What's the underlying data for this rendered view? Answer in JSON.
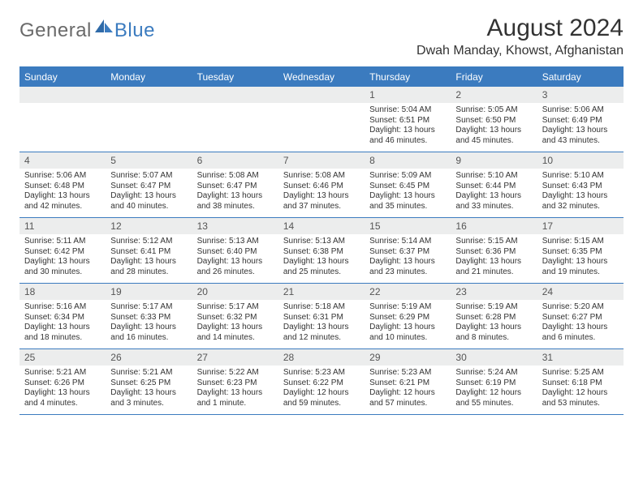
{
  "colors": {
    "brand_blue": "#3b7bbf",
    "logo_gray": "#6a6a6a",
    "band_gray": "#eceded",
    "text": "#333333",
    "background": "#ffffff"
  },
  "logo": {
    "text1": "General",
    "text2": "Blue"
  },
  "title": "August 2024",
  "location": "Dwah Manday, Khowst, Afghanistan",
  "weekdays": [
    "Sunday",
    "Monday",
    "Tuesday",
    "Wednesday",
    "Thursday",
    "Friday",
    "Saturday"
  ],
  "weeks": [
    [
      {
        "n": "",
        "sr": "",
        "ss": "",
        "d1": "",
        "d2": ""
      },
      {
        "n": "",
        "sr": "",
        "ss": "",
        "d1": "",
        "d2": ""
      },
      {
        "n": "",
        "sr": "",
        "ss": "",
        "d1": "",
        "d2": ""
      },
      {
        "n": "",
        "sr": "",
        "ss": "",
        "d1": "",
        "d2": ""
      },
      {
        "n": "1",
        "sr": "Sunrise: 5:04 AM",
        "ss": "Sunset: 6:51 PM",
        "d1": "Daylight: 13 hours",
        "d2": "and 46 minutes."
      },
      {
        "n": "2",
        "sr": "Sunrise: 5:05 AM",
        "ss": "Sunset: 6:50 PM",
        "d1": "Daylight: 13 hours",
        "d2": "and 45 minutes."
      },
      {
        "n": "3",
        "sr": "Sunrise: 5:06 AM",
        "ss": "Sunset: 6:49 PM",
        "d1": "Daylight: 13 hours",
        "d2": "and 43 minutes."
      }
    ],
    [
      {
        "n": "4",
        "sr": "Sunrise: 5:06 AM",
        "ss": "Sunset: 6:48 PM",
        "d1": "Daylight: 13 hours",
        "d2": "and 42 minutes."
      },
      {
        "n": "5",
        "sr": "Sunrise: 5:07 AM",
        "ss": "Sunset: 6:47 PM",
        "d1": "Daylight: 13 hours",
        "d2": "and 40 minutes."
      },
      {
        "n": "6",
        "sr": "Sunrise: 5:08 AM",
        "ss": "Sunset: 6:47 PM",
        "d1": "Daylight: 13 hours",
        "d2": "and 38 minutes."
      },
      {
        "n": "7",
        "sr": "Sunrise: 5:08 AM",
        "ss": "Sunset: 6:46 PM",
        "d1": "Daylight: 13 hours",
        "d2": "and 37 minutes."
      },
      {
        "n": "8",
        "sr": "Sunrise: 5:09 AM",
        "ss": "Sunset: 6:45 PM",
        "d1": "Daylight: 13 hours",
        "d2": "and 35 minutes."
      },
      {
        "n": "9",
        "sr": "Sunrise: 5:10 AM",
        "ss": "Sunset: 6:44 PM",
        "d1": "Daylight: 13 hours",
        "d2": "and 33 minutes."
      },
      {
        "n": "10",
        "sr": "Sunrise: 5:10 AM",
        "ss": "Sunset: 6:43 PM",
        "d1": "Daylight: 13 hours",
        "d2": "and 32 minutes."
      }
    ],
    [
      {
        "n": "11",
        "sr": "Sunrise: 5:11 AM",
        "ss": "Sunset: 6:42 PM",
        "d1": "Daylight: 13 hours",
        "d2": "and 30 minutes."
      },
      {
        "n": "12",
        "sr": "Sunrise: 5:12 AM",
        "ss": "Sunset: 6:41 PM",
        "d1": "Daylight: 13 hours",
        "d2": "and 28 minutes."
      },
      {
        "n": "13",
        "sr": "Sunrise: 5:13 AM",
        "ss": "Sunset: 6:40 PM",
        "d1": "Daylight: 13 hours",
        "d2": "and 26 minutes."
      },
      {
        "n": "14",
        "sr": "Sunrise: 5:13 AM",
        "ss": "Sunset: 6:38 PM",
        "d1": "Daylight: 13 hours",
        "d2": "and 25 minutes."
      },
      {
        "n": "15",
        "sr": "Sunrise: 5:14 AM",
        "ss": "Sunset: 6:37 PM",
        "d1": "Daylight: 13 hours",
        "d2": "and 23 minutes."
      },
      {
        "n": "16",
        "sr": "Sunrise: 5:15 AM",
        "ss": "Sunset: 6:36 PM",
        "d1": "Daylight: 13 hours",
        "d2": "and 21 minutes."
      },
      {
        "n": "17",
        "sr": "Sunrise: 5:15 AM",
        "ss": "Sunset: 6:35 PM",
        "d1": "Daylight: 13 hours",
        "d2": "and 19 minutes."
      }
    ],
    [
      {
        "n": "18",
        "sr": "Sunrise: 5:16 AM",
        "ss": "Sunset: 6:34 PM",
        "d1": "Daylight: 13 hours",
        "d2": "and 18 minutes."
      },
      {
        "n": "19",
        "sr": "Sunrise: 5:17 AM",
        "ss": "Sunset: 6:33 PM",
        "d1": "Daylight: 13 hours",
        "d2": "and 16 minutes."
      },
      {
        "n": "20",
        "sr": "Sunrise: 5:17 AM",
        "ss": "Sunset: 6:32 PM",
        "d1": "Daylight: 13 hours",
        "d2": "and 14 minutes."
      },
      {
        "n": "21",
        "sr": "Sunrise: 5:18 AM",
        "ss": "Sunset: 6:31 PM",
        "d1": "Daylight: 13 hours",
        "d2": "and 12 minutes."
      },
      {
        "n": "22",
        "sr": "Sunrise: 5:19 AM",
        "ss": "Sunset: 6:29 PM",
        "d1": "Daylight: 13 hours",
        "d2": "and 10 minutes."
      },
      {
        "n": "23",
        "sr": "Sunrise: 5:19 AM",
        "ss": "Sunset: 6:28 PM",
        "d1": "Daylight: 13 hours",
        "d2": "and 8 minutes."
      },
      {
        "n": "24",
        "sr": "Sunrise: 5:20 AM",
        "ss": "Sunset: 6:27 PM",
        "d1": "Daylight: 13 hours",
        "d2": "and 6 minutes."
      }
    ],
    [
      {
        "n": "25",
        "sr": "Sunrise: 5:21 AM",
        "ss": "Sunset: 6:26 PM",
        "d1": "Daylight: 13 hours",
        "d2": "and 4 minutes."
      },
      {
        "n": "26",
        "sr": "Sunrise: 5:21 AM",
        "ss": "Sunset: 6:25 PM",
        "d1": "Daylight: 13 hours",
        "d2": "and 3 minutes."
      },
      {
        "n": "27",
        "sr": "Sunrise: 5:22 AM",
        "ss": "Sunset: 6:23 PM",
        "d1": "Daylight: 13 hours",
        "d2": "and 1 minute."
      },
      {
        "n": "28",
        "sr": "Sunrise: 5:23 AM",
        "ss": "Sunset: 6:22 PM",
        "d1": "Daylight: 12 hours",
        "d2": "and 59 minutes."
      },
      {
        "n": "29",
        "sr": "Sunrise: 5:23 AM",
        "ss": "Sunset: 6:21 PM",
        "d1": "Daylight: 12 hours",
        "d2": "and 57 minutes."
      },
      {
        "n": "30",
        "sr": "Sunrise: 5:24 AM",
        "ss": "Sunset: 6:19 PM",
        "d1": "Daylight: 12 hours",
        "d2": "and 55 minutes."
      },
      {
        "n": "31",
        "sr": "Sunrise: 5:25 AM",
        "ss": "Sunset: 6:18 PM",
        "d1": "Daylight: 12 hours",
        "d2": "and 53 minutes."
      }
    ]
  ]
}
